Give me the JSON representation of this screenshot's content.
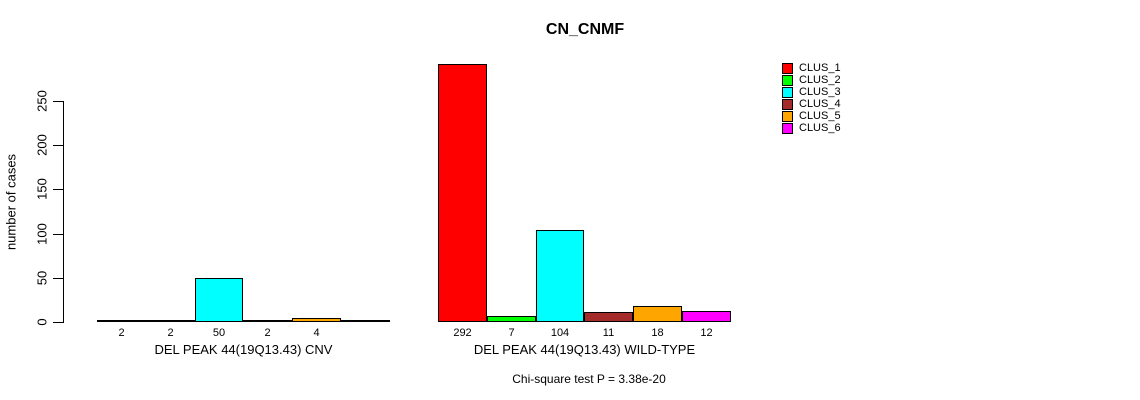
{
  "chart_data": {
    "type": "bar",
    "title": "CN_CNMF",
    "ylabel": "number of cases",
    "ylim": [
      0,
      250
    ],
    "yticks": [
      0,
      50,
      100,
      150,
      200,
      250
    ],
    "grid": false,
    "legend_position": "right",
    "clusters": [
      "CLUS_1",
      "CLUS_2",
      "CLUS_3",
      "CLUS_4",
      "CLUS_5",
      "CLUS_6"
    ],
    "colors": [
      "#FF0000",
      "#00FF00",
      "#00FFFF",
      "#A52A2A",
      "#FFA500",
      "#FF00FF"
    ],
    "axis_color": "#000000",
    "groups": [
      {
        "label": "DEL PEAK 44(19Q13.43) CNV",
        "values": [
          2,
          2,
          50,
          2,
          4,
          0
        ],
        "value_labels": [
          "2",
          "2",
          "50",
          "2",
          "4",
          ""
        ]
      },
      {
        "label": "DEL PEAK 44(19Q13.43) WILD-TYPE",
        "values": [
          292,
          7,
          104,
          11,
          18,
          12
        ],
        "value_labels": [
          "292",
          "7",
          "104",
          "11",
          "18",
          "12"
        ]
      }
    ],
    "annotation": "Chi-square test P = 3.38e-20"
  }
}
